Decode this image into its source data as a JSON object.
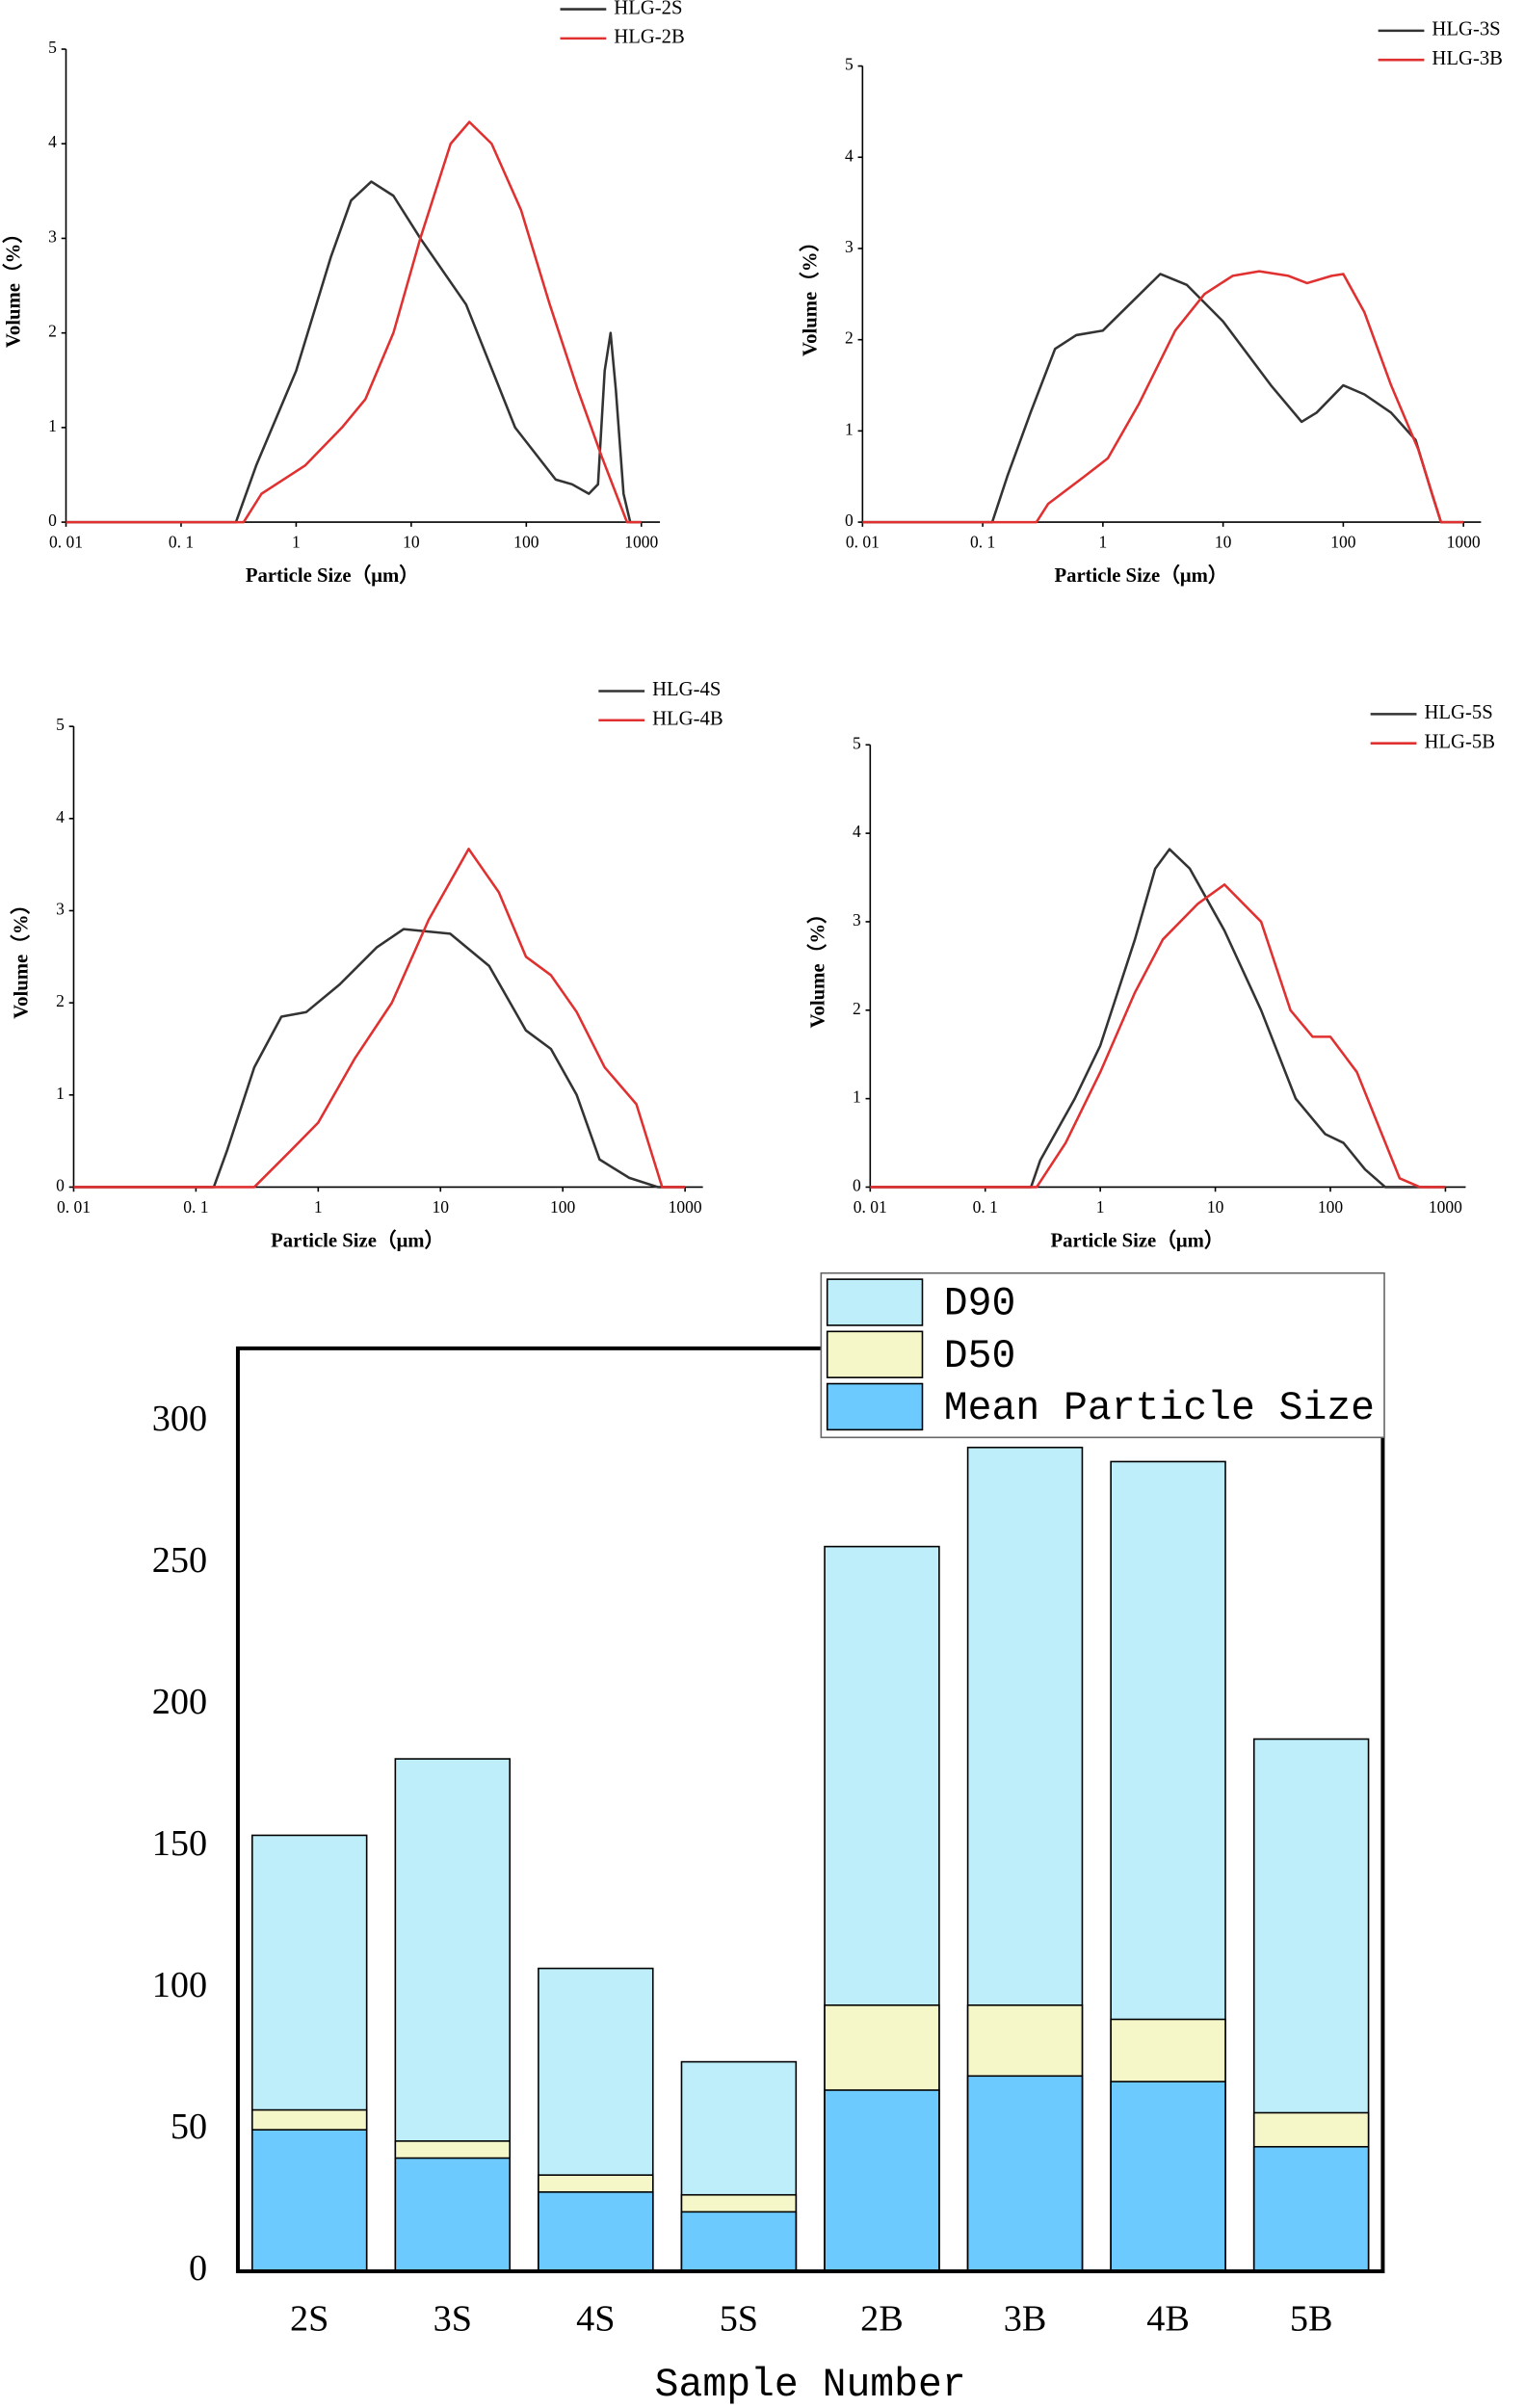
{
  "chart_data": [
    {
      "type": "line",
      "log_x": true,
      "xlabel": "Particle Size（μm）",
      "ylabel": "Volume（%）",
      "xlim": [
        0.01,
        1450
      ],
      "ylim": [
        0,
        5
      ],
      "xticks": [
        {
          "value": 0.01,
          "label": "0. 01"
        },
        {
          "value": 0.1,
          "label": "0. 1"
        },
        1,
        10,
        100,
        1000
      ],
      "yticks": [
        0,
        1,
        2,
        3,
        4,
        5
      ],
      "series": [
        {
          "name": "HLG-2S",
          "color": "#333333",
          "x": [
            0.01,
            0.3,
            0.45,
            1,
            2,
            3,
            4.5,
            7,
            12,
            30,
            80,
            180,
            250,
            350,
            420,
            480,
            540,
            600,
            700,
            800,
            1000
          ],
          "values": [
            0,
            0,
            0.6,
            1.6,
            2.8,
            3.4,
            3.6,
            3.45,
            3.0,
            2.3,
            1.0,
            0.45,
            0.4,
            0.3,
            0.4,
            1.6,
            2.0,
            1.4,
            0.3,
            0,
            0
          ]
        },
        {
          "name": "HLG-2B",
          "color": "#e03030",
          "x": [
            0.01,
            0.35,
            0.5,
            1.2,
            2.5,
            4,
            7,
            12,
            22,
            32,
            50,
            90,
            160,
            280,
            450,
            750,
            1000
          ],
          "values": [
            0,
            0,
            0.3,
            0.6,
            1.0,
            1.3,
            2.0,
            3.0,
            4.0,
            4.23,
            4.0,
            3.3,
            2.3,
            1.4,
            0.7,
            0,
            0
          ]
        }
      ]
    },
    {
      "type": "line",
      "log_x": true,
      "xlabel": "Particle Size（μm）",
      "ylabel": "Volume（%）",
      "xlim": [
        0.01,
        1400
      ],
      "ylim": [
        0,
        5
      ],
      "xticks": [
        {
          "value": 0.01,
          "label": "0. 01"
        },
        {
          "value": 0.1,
          "label": "0. 1"
        },
        1,
        10,
        100,
        1000
      ],
      "yticks": [
        0,
        1,
        2,
        3,
        4,
        5
      ],
      "series": [
        {
          "name": "HLG-3S",
          "color": "#333333",
          "x": [
            0.01,
            0.12,
            0.16,
            0.25,
            0.4,
            0.6,
            1,
            1.7,
            3,
            5,
            10,
            25,
            45,
            60,
            100,
            150,
            250,
            400,
            550,
            650,
            1000
          ],
          "values": [
            0,
            0,
            0.5,
            1.2,
            1.9,
            2.05,
            2.1,
            2.4,
            2.72,
            2.6,
            2.2,
            1.5,
            1.1,
            1.2,
            1.5,
            1.4,
            1.2,
            0.9,
            0.3,
            0,
            0
          ]
        },
        {
          "name": "HLG-3B",
          "color": "#e03030",
          "x": [
            0.01,
            0.28,
            0.35,
            0.7,
            1.1,
            2,
            4,
            7,
            12,
            20,
            35,
            50,
            80,
            100,
            150,
            250,
            420,
            650,
            1000
          ],
          "values": [
            0,
            0,
            0.2,
            0.5,
            0.7,
            1.3,
            2.1,
            2.5,
            2.7,
            2.75,
            2.7,
            2.62,
            2.7,
            2.72,
            2.3,
            1.5,
            0.8,
            0,
            0
          ]
        }
      ]
    },
    {
      "type": "line",
      "log_x": true,
      "xlabel": "Particle Size（μm）",
      "ylabel": "Volume（%）",
      "xlim": [
        0.01,
        1400
      ],
      "ylim": [
        0,
        5
      ],
      "xticks": [
        {
          "value": 0.01,
          "label": "0. 01"
        },
        {
          "value": 0.1,
          "label": "0. 1"
        },
        1,
        10,
        100,
        1000
      ],
      "yticks": [
        0,
        1,
        2,
        3,
        4,
        5
      ],
      "series": [
        {
          "name": "HLG-4S",
          "color": "#333333",
          "x": [
            0.01,
            0.14,
            0.18,
            0.3,
            0.5,
            0.8,
            1.5,
            3,
            5,
            12,
            25,
            50,
            80,
            130,
            200,
            350,
            600,
            1000
          ],
          "values": [
            0,
            0,
            0.4,
            1.3,
            1.85,
            1.9,
            2.2,
            2.6,
            2.8,
            2.75,
            2.4,
            1.7,
            1.5,
            1.0,
            0.3,
            0.1,
            0,
            0
          ]
        },
        {
          "name": "HLG-4B",
          "color": "#e03030",
          "x": [
            0.01,
            0.3,
            0.6,
            1,
            2,
            4,
            8,
            17,
            30,
            50,
            80,
            130,
            220,
            400,
            650,
            1000
          ],
          "values": [
            0,
            0,
            0.4,
            0.7,
            1.4,
            2.0,
            2.9,
            3.67,
            3.2,
            2.5,
            2.3,
            1.9,
            1.3,
            0.9,
            0,
            0
          ]
        }
      ]
    },
    {
      "type": "line",
      "log_x": true,
      "xlabel": "Particle Size（μm）",
      "ylabel": "Volume（%）",
      "xlim": [
        0.01,
        1500
      ],
      "ylim": [
        0,
        5
      ],
      "xticks": [
        {
          "value": 0.01,
          "label": "0. 01"
        },
        {
          "value": 0.1,
          "label": "0. 1"
        },
        1,
        10,
        100,
        1000
      ],
      "yticks": [
        0,
        1,
        2,
        3,
        4,
        5
      ],
      "series": [
        {
          "name": "HLG-5S",
          "color": "#333333",
          "x": [
            0.01,
            0.25,
            0.3,
            0.6,
            1,
            2,
            3,
            4,
            6,
            12,
            25,
            50,
            90,
            130,
            200,
            300,
            1000
          ],
          "values": [
            0,
            0,
            0.3,
            1.0,
            1.6,
            2.8,
            3.6,
            3.82,
            3.6,
            2.9,
            2.0,
            1.0,
            0.6,
            0.5,
            0.2,
            0,
            0
          ]
        },
        {
          "name": "HLG-5B",
          "color": "#e03030",
          "x": [
            0.01,
            0.28,
            0.5,
            1,
            2,
            3.5,
            7,
            12,
            25,
            45,
            70,
            100,
            170,
            280,
            400,
            600,
            1000
          ],
          "values": [
            0,
            0,
            0.5,
            1.3,
            2.2,
            2.8,
            3.2,
            3.42,
            3.0,
            2.0,
            1.7,
            1.7,
            1.3,
            0.6,
            0.1,
            0,
            0
          ]
        }
      ]
    },
    {
      "type": "bar",
      "overlap": true,
      "xlabel": "Sample Number",
      "categories": [
        "2S",
        "3S",
        "4S",
        "5S",
        "2B",
        "3B",
        "4B",
        "5B"
      ],
      "ylim": [
        0,
        326
      ],
      "yticks": [
        0,
        50,
        100,
        150,
        200,
        250,
        300
      ],
      "series": [
        {
          "name": "D90",
          "color": "#bdeefa",
          "values": [
            154,
            181,
            107,
            74,
            256,
            291,
            286,
            188
          ]
        },
        {
          "name": "D50",
          "color": "#f5f7c8",
          "values": [
            57,
            46,
            34,
            27,
            94,
            94,
            89,
            56
          ]
        },
        {
          "name": "Mean Particle Size",
          "color": "#6ccaff",
          "values": [
            50,
            40,
            28,
            21,
            64,
            69,
            67,
            44
          ]
        }
      ]
    }
  ]
}
